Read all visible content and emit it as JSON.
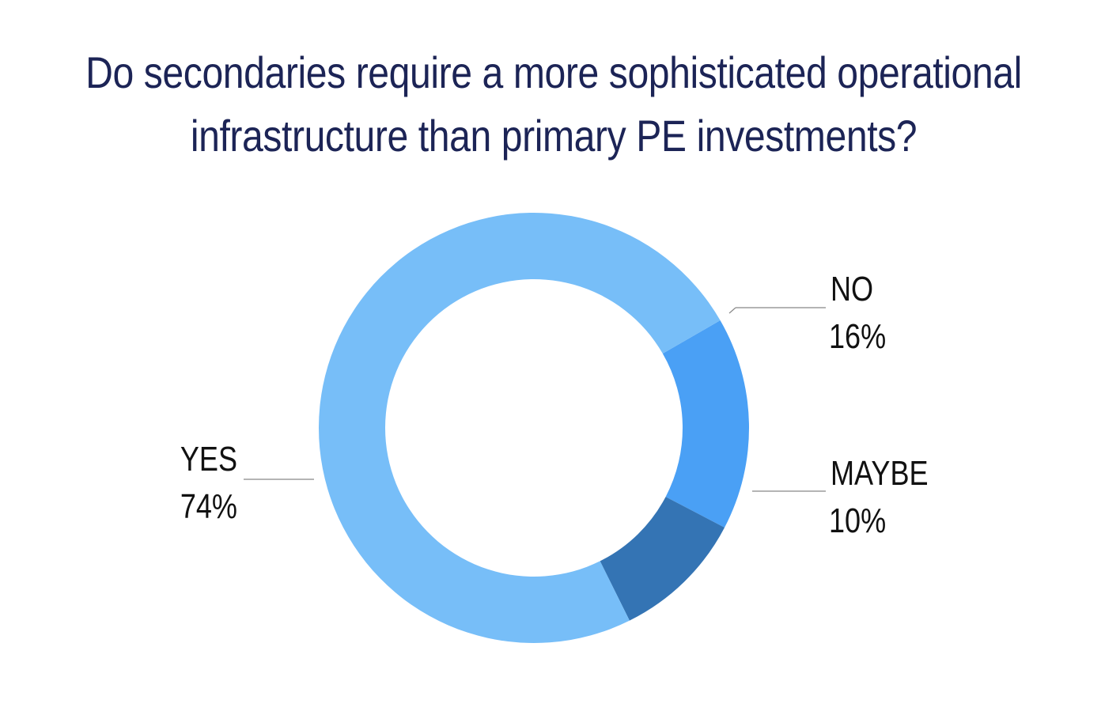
{
  "chart_data": {
    "type": "pie",
    "title_lines": [
      "Do secondaries require a more sophisticated operational",
      "infrastructure than primary PE investments?"
    ],
    "slices": [
      {
        "label": "NO",
        "value": 16,
        "value_text": "16%",
        "color": "#4aa0f5"
      },
      {
        "label": "MAYBE",
        "value": 10,
        "value_text": "10%",
        "color": "#3474b4"
      },
      {
        "label": "YES",
        "value": 74,
        "value_text": "74%",
        "color": "#77bef8"
      }
    ],
    "donut": true,
    "label_style": "leader-lines"
  }
}
